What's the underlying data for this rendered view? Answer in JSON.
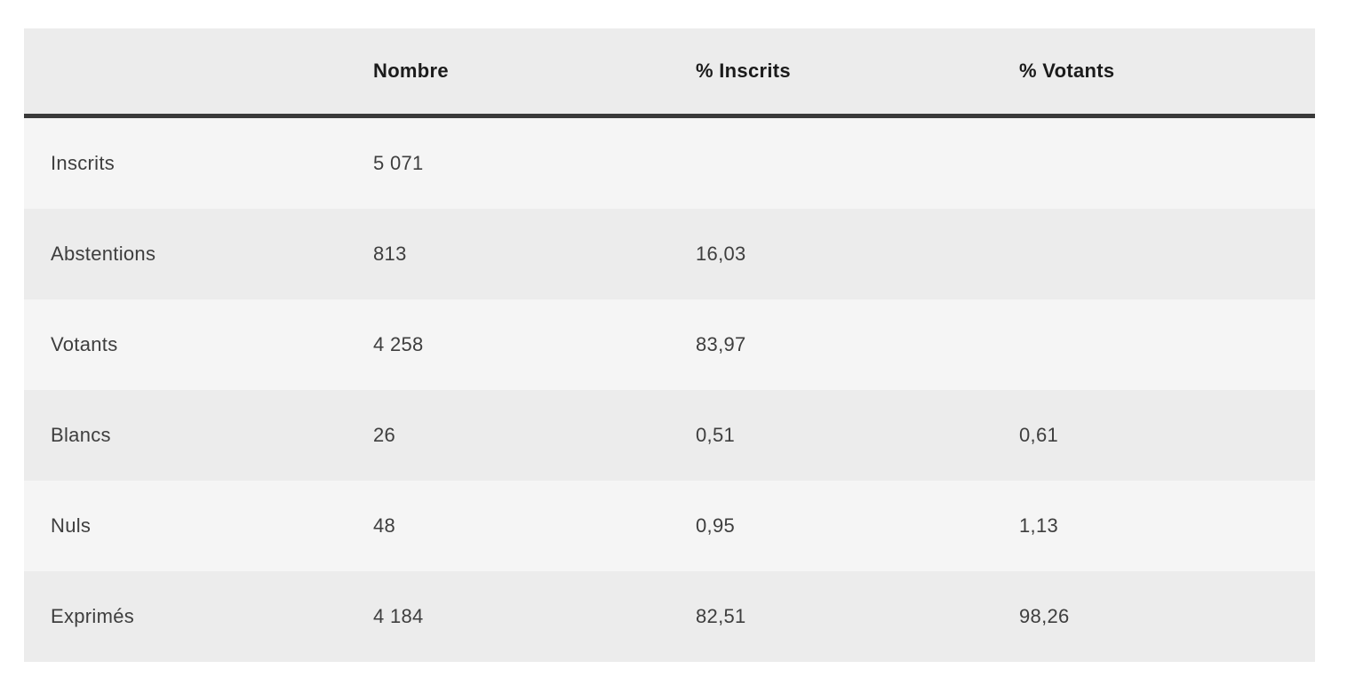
{
  "chart_data": {
    "type": "table",
    "title": "",
    "columns": [
      "",
      "Nombre",
      "% Inscrits",
      "% Votants"
    ],
    "rows": [
      {
        "label": "Inscrits",
        "nombre": 5071,
        "pct_inscrits": null,
        "pct_votants": null
      },
      {
        "label": "Abstentions",
        "nombre": 813,
        "pct_inscrits": 16.03,
        "pct_votants": null
      },
      {
        "label": "Votants",
        "nombre": 4258,
        "pct_inscrits": 83.97,
        "pct_votants": null
      },
      {
        "label": "Blancs",
        "nombre": 26,
        "pct_inscrits": 0.51,
        "pct_votants": 0.61
      },
      {
        "label": "Nuls",
        "nombre": 48,
        "pct_inscrits": 0.95,
        "pct_votants": 1.13
      },
      {
        "label": "Exprimés",
        "nombre": 4184,
        "pct_inscrits": 82.51,
        "pct_votants": 98.26
      }
    ],
    "number_format": "fr-FR (comma decimal separator, narrow space thousands separator)",
    "legend_position": "none",
    "grid": "alternating-row-shading"
  },
  "table": {
    "headers": {
      "col1": "",
      "col2": "Nombre",
      "col3": "% Inscrits",
      "col4": "% Votants"
    },
    "rows": [
      {
        "label": "Inscrits",
        "nombre": "5 071",
        "pct_inscrits": "",
        "pct_votants": ""
      },
      {
        "label": "Abstentions",
        "nombre": "813",
        "pct_inscrits": "16,03",
        "pct_votants": ""
      },
      {
        "label": "Votants",
        "nombre": "4 258",
        "pct_inscrits": "83,97",
        "pct_votants": ""
      },
      {
        "label": "Blancs",
        "nombre": "26",
        "pct_inscrits": "0,51",
        "pct_votants": "0,61"
      },
      {
        "label": "Nuls",
        "nombre": "48",
        "pct_inscrits": "0,95",
        "pct_votants": "1,13"
      },
      {
        "label": "Exprimés",
        "nombre": "4 184",
        "pct_inscrits": "82,51",
        "pct_votants": "98,26"
      }
    ]
  },
  "colors": {
    "page_bg": "#FFFFFF",
    "header_bg": "#ECECEC",
    "header_text": "#1B1B1B",
    "header_bottom_border": "#3A3A3A",
    "row_light_bg": "#F5F5F5",
    "row_dark_bg": "#ECECEC",
    "body_text": "#3E3E3E"
  }
}
